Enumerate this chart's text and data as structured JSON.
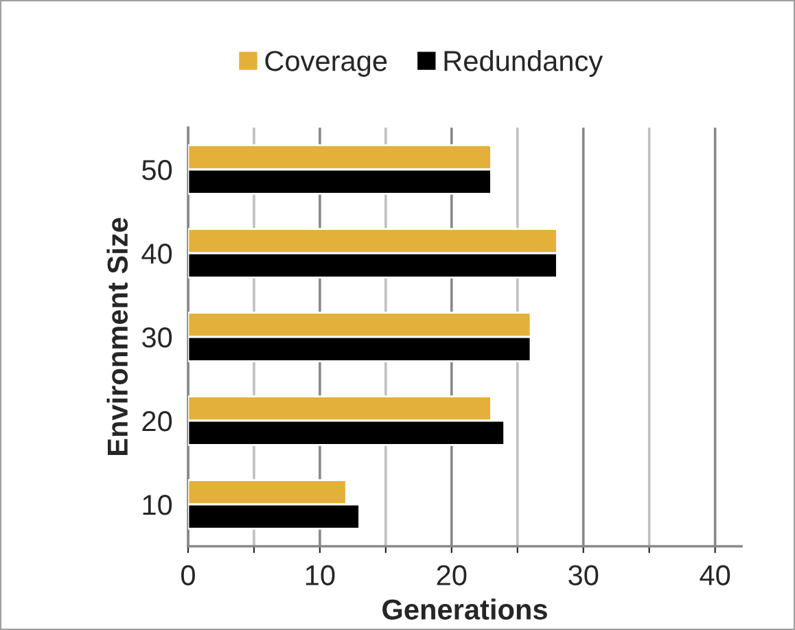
{
  "chart_data": {
    "type": "bar",
    "orientation": "horizontal",
    "xlabel": "Generations",
    "ylabel": "Environment Size",
    "categories": [
      "50",
      "40",
      "30",
      "20",
      "10"
    ],
    "series": [
      {
        "name": "Coverage",
        "color": "#e3b03a",
        "values": [
          23,
          28,
          26,
          23,
          12
        ]
      },
      {
        "name": "Redundancy",
        "color": "#000000",
        "values": [
          23,
          28,
          26,
          24,
          13
        ]
      }
    ],
    "xlim": [
      0,
      42
    ],
    "xticks": [
      0,
      {
        "value": 5,
        "label": null
      },
      10,
      {
        "value": 15,
        "label": null
      },
      20,
      {
        "value": 25,
        "label": null
      },
      30,
      {
        "value": 35,
        "label": null
      },
      40
    ],
    "grid": "x",
    "legend": "top"
  }
}
